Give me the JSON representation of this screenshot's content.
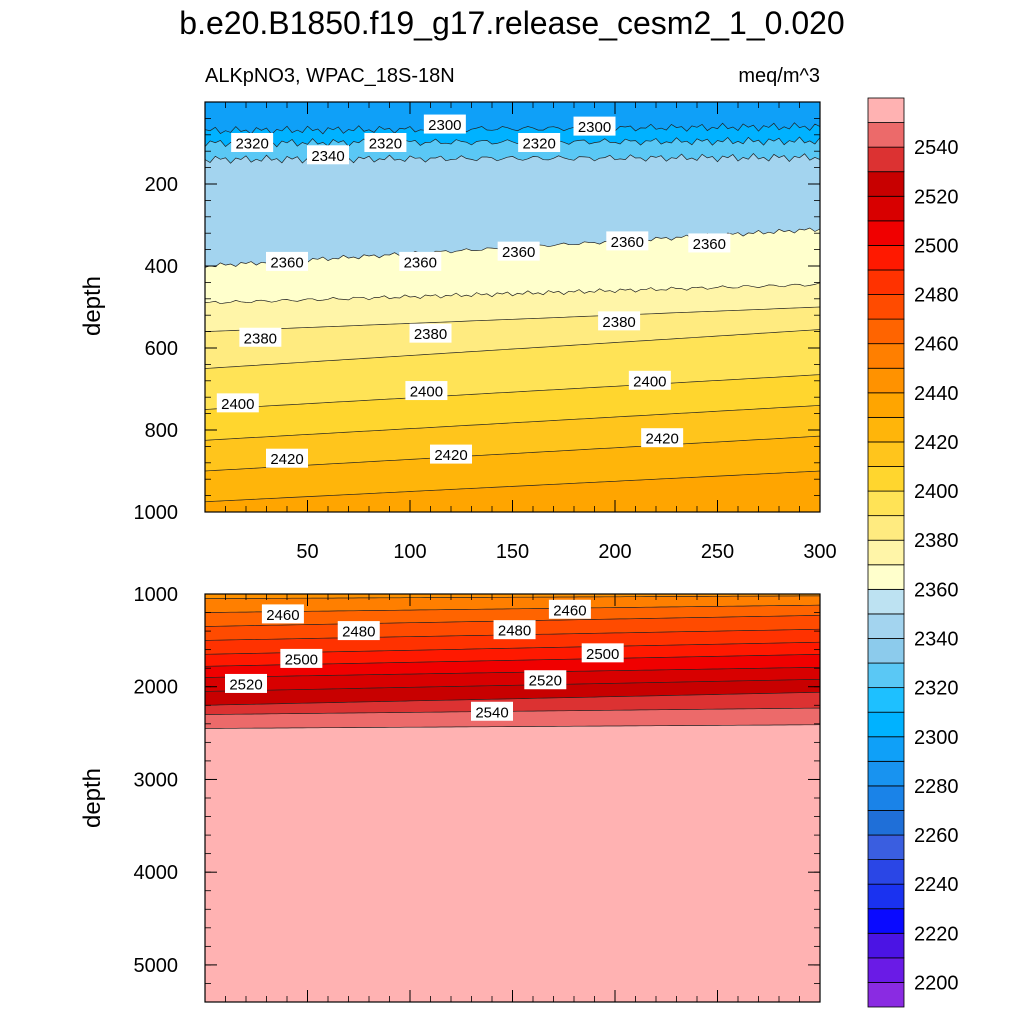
{
  "chart_data": {
    "type": "contour",
    "title": "b.e20.B1850.f19_g17.release_cesm2_1_0.020",
    "left_string": "ALKpNO3, WPAC_18S-18N",
    "right_string": "meq/m^3",
    "xlabel": "",
    "ylabel": "depth",
    "xlim": [
      0,
      300
    ],
    "x_ticks": [
      50,
      100,
      150,
      200,
      250,
      300
    ],
    "panels": [
      {
        "name": "upper",
        "ylim": [
          0,
          1000
        ],
        "y_ticks": [
          200,
          400,
          600,
          800,
          1000
        ],
        "contours": [
          {
            "level": 2300,
            "depth_at_x0": 70,
            "depth_at_x300": 60
          },
          {
            "level": 2320,
            "depth_at_x0": 100,
            "depth_at_x300": 95
          },
          {
            "level": 2340,
            "depth_at_x0": 140,
            "depth_at_x300": 135
          },
          {
            "level": 2360,
            "depth_at_x0": 400,
            "depth_at_x300": 310
          },
          {
            "level": 2370,
            "depth_at_x0": 490,
            "depth_at_x300": 445
          },
          {
            "level": 2380,
            "depth_at_x0": 560,
            "depth_at_x300": 500
          },
          {
            "level": 2390,
            "depth_at_x0": 650,
            "depth_at_x300": 555
          },
          {
            "level": 2400,
            "depth_at_x0": 750,
            "depth_at_x300": 665
          },
          {
            "level": 2410,
            "depth_at_x0": 825,
            "depth_at_x300": 740
          },
          {
            "level": 2420,
            "depth_at_x0": 900,
            "depth_at_x300": 815
          },
          {
            "level": 2430,
            "depth_at_x0": 975,
            "depth_at_x300": 900
          }
        ],
        "labels": [
          {
            "text": "2320",
            "x": 23,
            "depth": 100
          },
          {
            "text": "2340",
            "x": 60,
            "depth": 130
          },
          {
            "text": "2320",
            "x": 88,
            "depth": 100
          },
          {
            "text": "2300",
            "x": 117,
            "depth": 55
          },
          {
            "text": "2320",
            "x": 163,
            "depth": 100
          },
          {
            "text": "2300",
            "x": 190,
            "depth": 60
          },
          {
            "text": "2360",
            "x": 40,
            "depth": 390
          },
          {
            "text": "2360",
            "x": 105,
            "depth": 390
          },
          {
            "text": "2360",
            "x": 153,
            "depth": 365
          },
          {
            "text": "2360",
            "x": 206,
            "depth": 340
          },
          {
            "text": "2360",
            "x": 246,
            "depth": 345
          },
          {
            "text": "2380",
            "x": 27,
            "depth": 575
          },
          {
            "text": "2380",
            "x": 110,
            "depth": 565
          },
          {
            "text": "2380",
            "x": 202,
            "depth": 535
          },
          {
            "text": "2400",
            "x": 16,
            "depth": 735
          },
          {
            "text": "2400",
            "x": 108,
            "depth": 705
          },
          {
            "text": "2400",
            "x": 217,
            "depth": 680
          },
          {
            "text": "2420",
            "x": 40,
            "depth": 870
          },
          {
            "text": "2420",
            "x": 120,
            "depth": 860
          },
          {
            "text": "2420",
            "x": 223,
            "depth": 820
          }
        ]
      },
      {
        "name": "lower",
        "ylim": [
          1000,
          5400
        ],
        "y_ticks": [
          1000,
          2000,
          3000,
          4000,
          5000
        ],
        "contours": [
          {
            "level": 2450,
            "depth_at_x0": 1050,
            "depth_at_x300": 1020
          },
          {
            "level": 2460,
            "depth_at_x0": 1200,
            "depth_at_x300": 1120
          },
          {
            "level": 2470,
            "depth_at_x0": 1350,
            "depth_at_x300": 1230
          },
          {
            "level": 2480,
            "depth_at_x0": 1500,
            "depth_at_x300": 1380
          },
          {
            "level": 2490,
            "depth_at_x0": 1650,
            "depth_at_x300": 1520
          },
          {
            "level": 2500,
            "depth_at_x0": 1780,
            "depth_at_x300": 1650
          },
          {
            "level": 2510,
            "depth_at_x0": 1900,
            "depth_at_x300": 1790
          },
          {
            "level": 2520,
            "depth_at_x0": 2050,
            "depth_at_x300": 1920
          },
          {
            "level": 2530,
            "depth_at_x0": 2200,
            "depth_at_x300": 2060
          },
          {
            "level": 2540,
            "depth_at_x0": 2300,
            "depth_at_x300": 2230
          },
          {
            "level": 2550,
            "depth_at_x0": 2450,
            "depth_at_x300": 2410
          }
        ],
        "labels": [
          {
            "text": "2460",
            "x": 38,
            "depth": 1220
          },
          {
            "text": "2480",
            "x": 75,
            "depth": 1400
          },
          {
            "text": "2500",
            "x": 47,
            "depth": 1700
          },
          {
            "text": "2520",
            "x": 20,
            "depth": 1970
          },
          {
            "text": "2460",
            "x": 178,
            "depth": 1170
          },
          {
            "text": "2480",
            "x": 151,
            "depth": 1390
          },
          {
            "text": "2500",
            "x": 194,
            "depth": 1640
          },
          {
            "text": "2520",
            "x": 166,
            "depth": 1930
          },
          {
            "text": "2540",
            "x": 140,
            "depth": 2270
          }
        ]
      }
    ],
    "colorbar": {
      "levels": [
        2200,
        2210,
        2220,
        2230,
        2240,
        2250,
        2260,
        2270,
        2280,
        2290,
        2300,
        2310,
        2320,
        2330,
        2340,
        2350,
        2360,
        2370,
        2380,
        2390,
        2400,
        2410,
        2420,
        2430,
        2440,
        2450,
        2460,
        2470,
        2480,
        2490,
        2500,
        2510,
        2520,
        2530,
        2540,
        2550
      ],
      "labeled_levels": [
        2200,
        2220,
        2240,
        2260,
        2280,
        2300,
        2320,
        2340,
        2360,
        2380,
        2400,
        2420,
        2440,
        2460,
        2480,
        2500,
        2520,
        2540
      ],
      "colors": [
        "#8a2be2",
        "#6a1be6",
        "#4b14e4",
        "#0a0aff",
        "#1a32f0",
        "#2a46e6",
        "#3a5ee0",
        "#1f6fd8",
        "#1a83e8",
        "#1893f0",
        "#0fa0f8",
        "#00b2ff",
        "#1ec0ff",
        "#5ac8f5",
        "#8ccbec",
        "#a3d4ef",
        "#bde2f2",
        "#ffffcc",
        "#fff5a8",
        "#ffeb80",
        "#ffe356",
        "#ffd62e",
        "#ffc51c",
        "#ffb50a",
        "#ffa500",
        "#ff9200",
        "#ff7f00",
        "#ff6400",
        "#ff4b00",
        "#ff3200",
        "#ff1900",
        "#f00000",
        "#d80000",
        "#c80000",
        "#dc3232",
        "#ec6a6a",
        "#ffb2b2"
      ]
    }
  }
}
